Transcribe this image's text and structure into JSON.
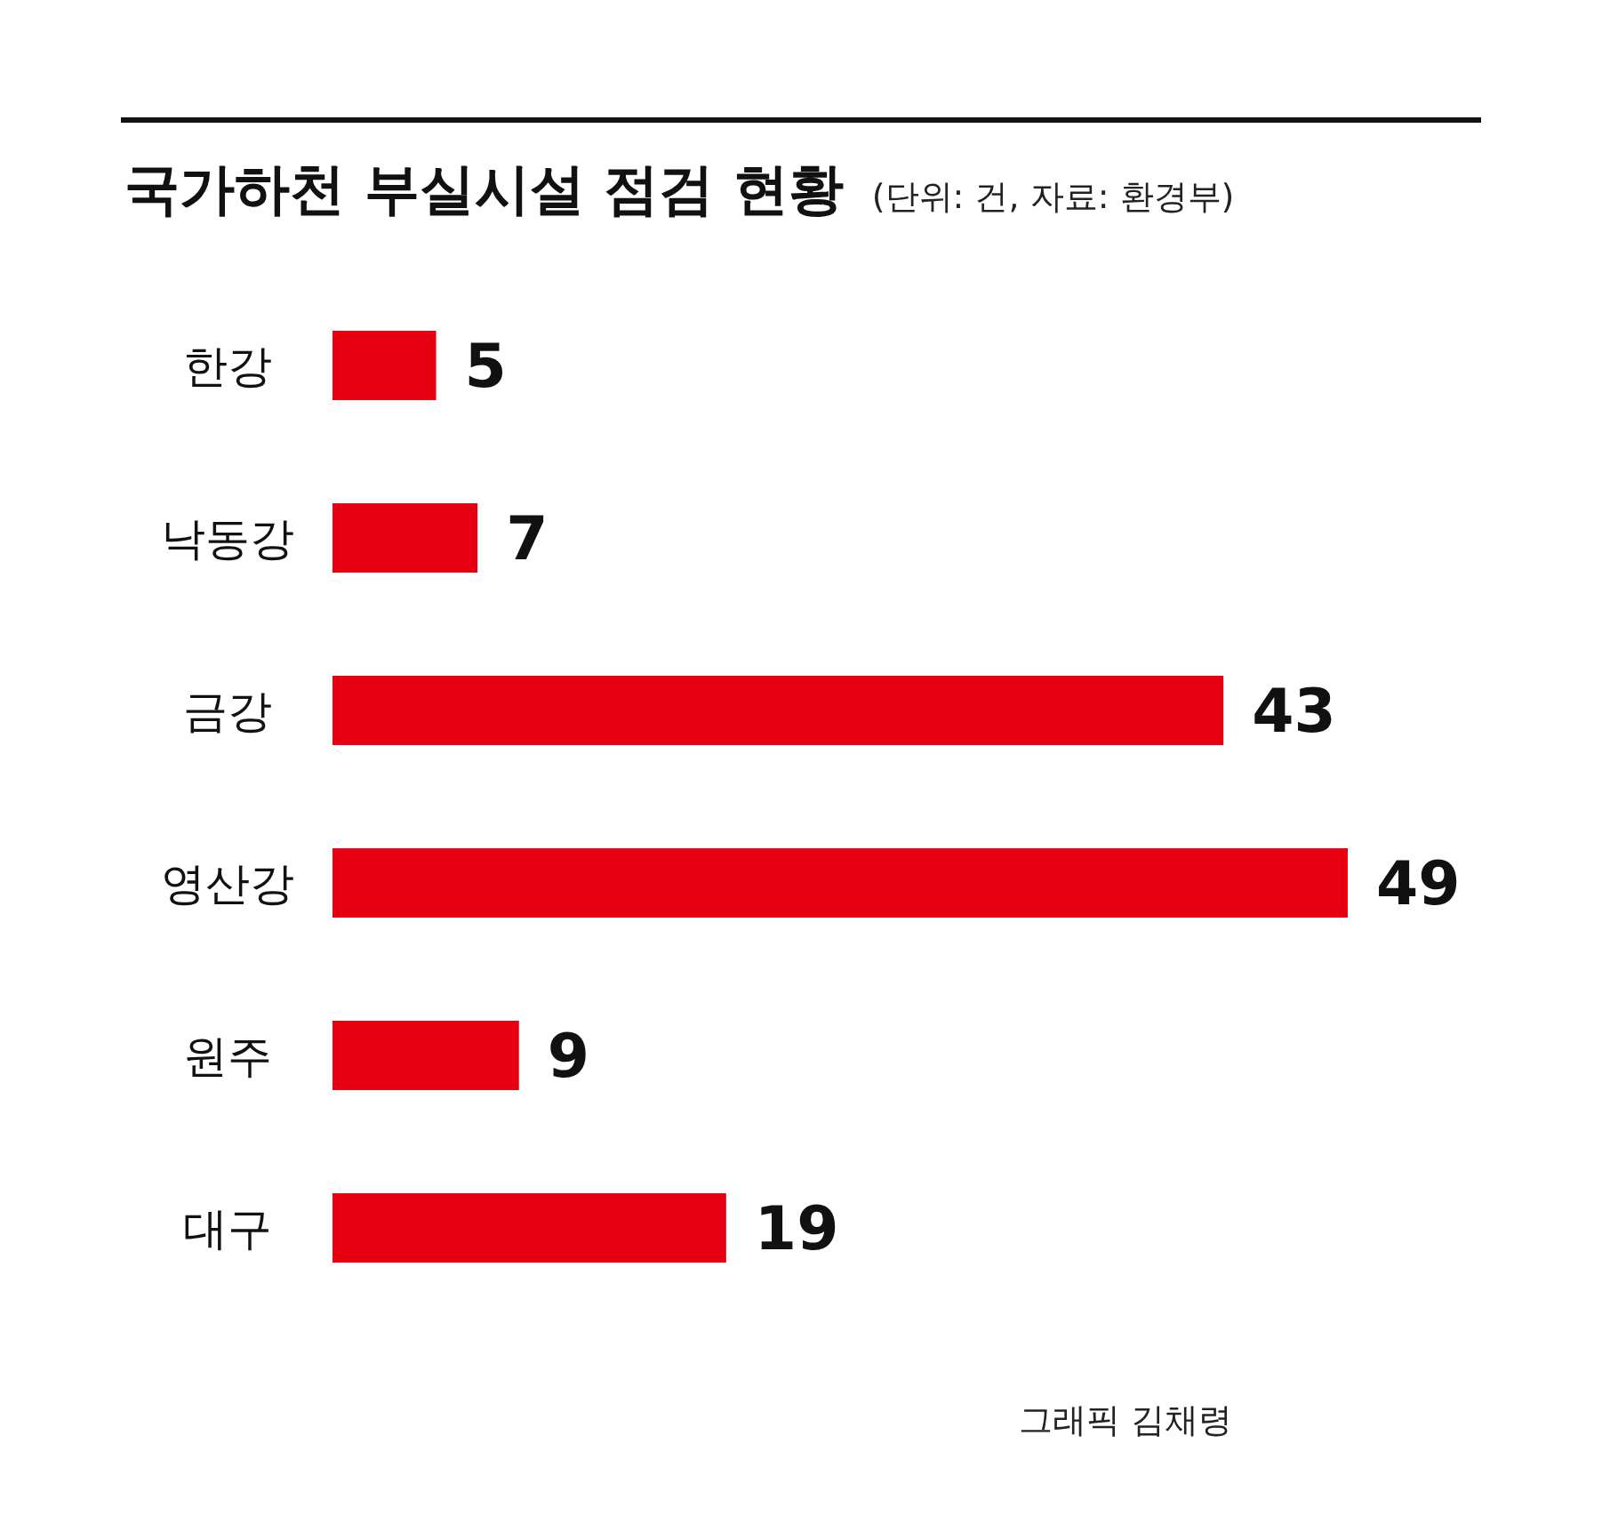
{
  "chart_data": {
    "type": "bar",
    "orientation": "horizontal",
    "title": "국가하천 부실시설 점검 현황",
    "subtitle": "(단위: 건, 자료: 환경부)",
    "categories": [
      "한강",
      "낙동강",
      "금강",
      "영산강",
      "원주",
      "대구"
    ],
    "values": [
      5,
      7,
      43,
      49,
      9,
      19
    ],
    "color": "#e60012",
    "data_labels": true,
    "grid": false,
    "legend": false,
    "annotations": [
      "그래픽 김채령"
    ]
  }
}
